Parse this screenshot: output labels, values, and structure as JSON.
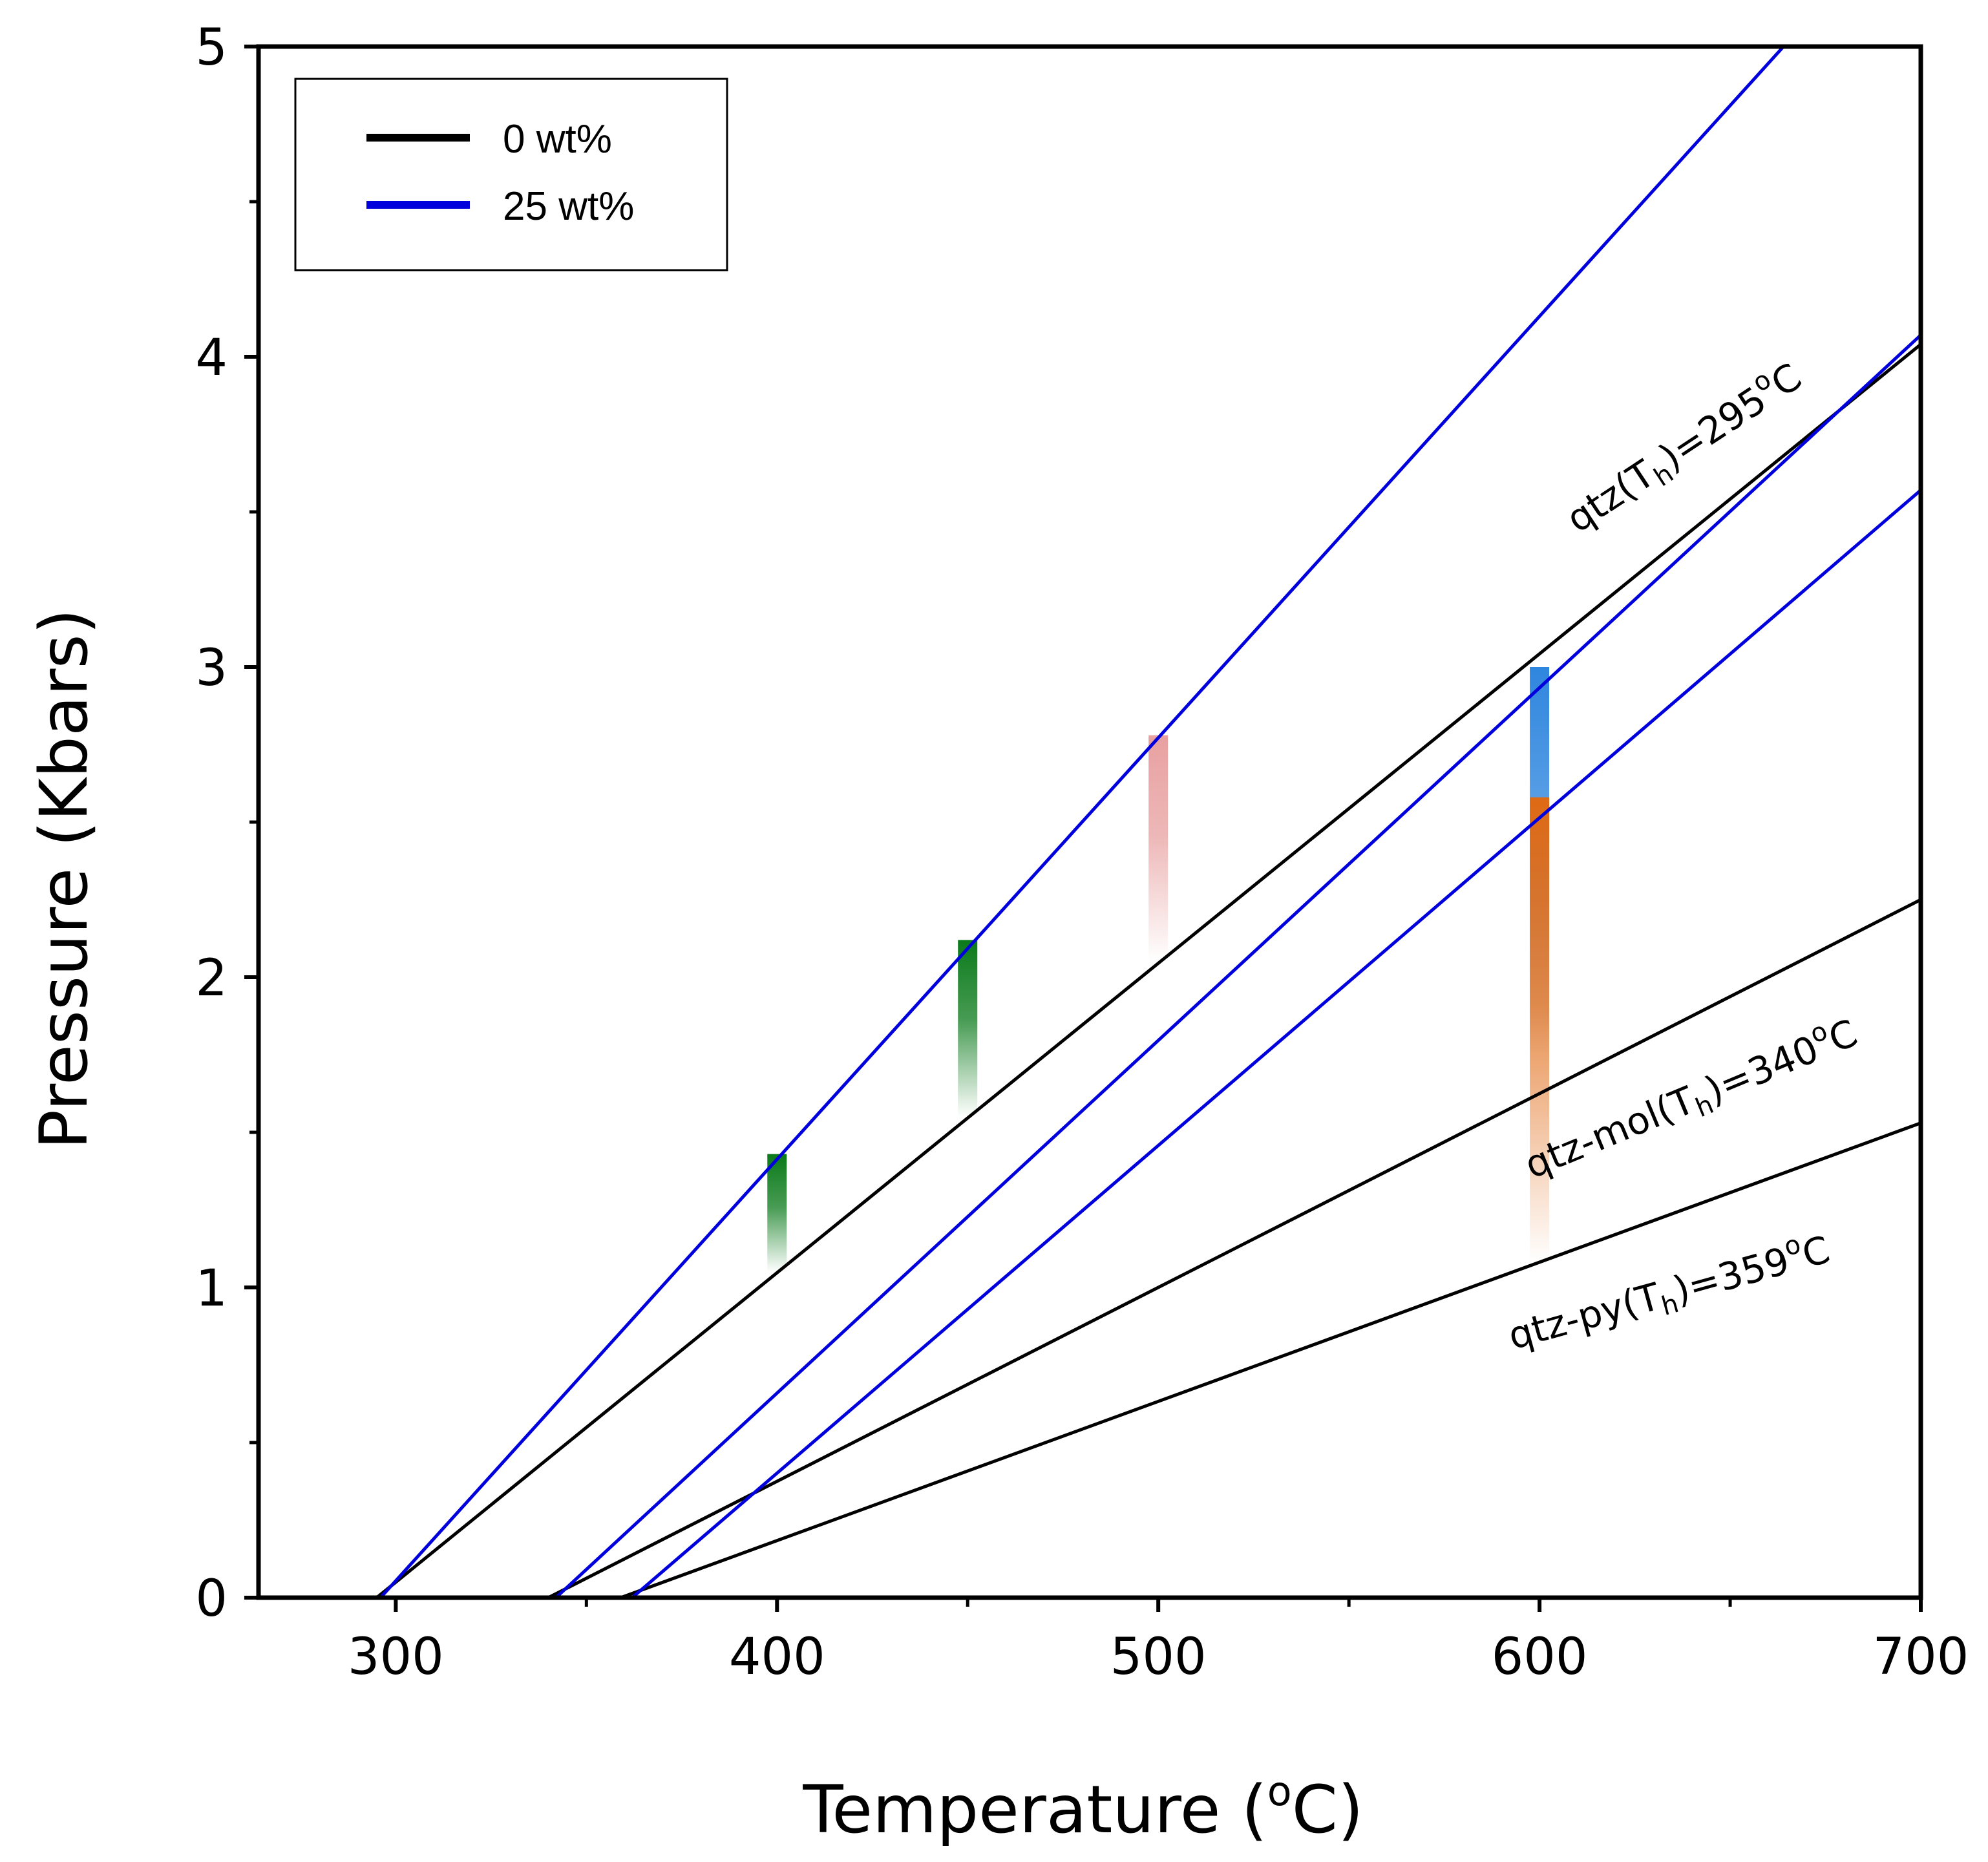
{
  "chart_data": {
    "type": "line",
    "xlabel_main": "Temperature (",
    "xlabel_sup": "o",
    "xlabel_unit": "C)",
    "ylabel": "Pressure (Kbars)",
    "xlim": [
      264,
      700
    ],
    "ylim": [
      0,
      5
    ],
    "x_ticks": [
      300,
      400,
      500,
      600,
      700
    ],
    "x_minor_ticks": [
      350,
      450,
      550,
      650
    ],
    "y_ticks": [
      0,
      1,
      2,
      3,
      4,
      5
    ],
    "y_minor_ticks": [
      0.5,
      1.5,
      2.5,
      3.5,
      4.5
    ],
    "legend": {
      "position": "top-left",
      "entries": [
        {
          "label": "0 wt%",
          "color": "#000000"
        },
        {
          "label": "25 wt%",
          "color": "#0000dd"
        }
      ]
    },
    "series": [
      {
        "name": "qtz 0 wt%",
        "group": "0 wt%",
        "color": "#000000",
        "points": [
          [
            295,
            0
          ],
          [
            700,
            4.04
          ]
        ]
      },
      {
        "name": "qtz-mol 0 wt%",
        "group": "0 wt%",
        "color": "#000000",
        "points": [
          [
            340,
            0
          ],
          [
            700,
            2.25
          ]
        ]
      },
      {
        "name": "qtz-py 0 wt%",
        "group": "0 wt%",
        "color": "#000000",
        "points": [
          [
            359,
            0
          ],
          [
            700,
            1.53
          ]
        ]
      },
      {
        "name": "qtz 25 wt%",
        "group": "25 wt%",
        "color": "#0000dd",
        "points": [
          [
            296,
            0
          ],
          [
            664,
            5.0
          ]
        ]
      },
      {
        "name": "qtz-mol 25 wt%",
        "group": "25 wt%",
        "color": "#0000dd",
        "points": [
          [
            342,
            0
          ],
          [
            700,
            4.07
          ]
        ]
      },
      {
        "name": "qtz-py 25 wt%",
        "group": "25 wt%",
        "color": "#0000dd",
        "points": [
          [
            362,
            0
          ],
          [
            700,
            3.57
          ]
        ]
      }
    ],
    "annotations": [
      {
        "pre": "qtz(T",
        "sub": "h",
        "post": ")=295",
        "sup": "o",
        "end": "C",
        "x": 610,
        "y": 3.43,
        "angle_deg": -33.5
      },
      {
        "pre": "qtz-mol(T",
        "sub": "h",
        "post": ")=340",
        "sup": "o",
        "end": "C",
        "x": 598,
        "y": 1.35,
        "angle_deg": -22.5
      },
      {
        "pre": "qtz-py(T",
        "sub": "h",
        "post": ")=359",
        "sup": "o",
        "end": "C",
        "x": 593,
        "y": 0.8,
        "angle_deg": -15.5
      }
    ],
    "shaded_ranges": [
      {
        "x": 400,
        "y_top": 1.43,
        "y_bottom": 1.05,
        "color": "#0a7a1a",
        "fade": "down"
      },
      {
        "x": 450,
        "y_top": 2.12,
        "y_bottom": 1.55,
        "color": "#0a7a1a",
        "fade": "down"
      },
      {
        "x": 500,
        "y_top": 2.78,
        "y_bottom": 2.05,
        "color": "#e8a0a0",
        "fade": "down"
      },
      {
        "x": 600,
        "y_top": 3.0,
        "y_bottom": 1.75,
        "color": "#2f86de",
        "fade": "down"
      },
      {
        "x": 600,
        "y_top": 2.58,
        "y_bottom": 1.08,
        "color": "#e06a14",
        "fade": "down"
      }
    ]
  }
}
